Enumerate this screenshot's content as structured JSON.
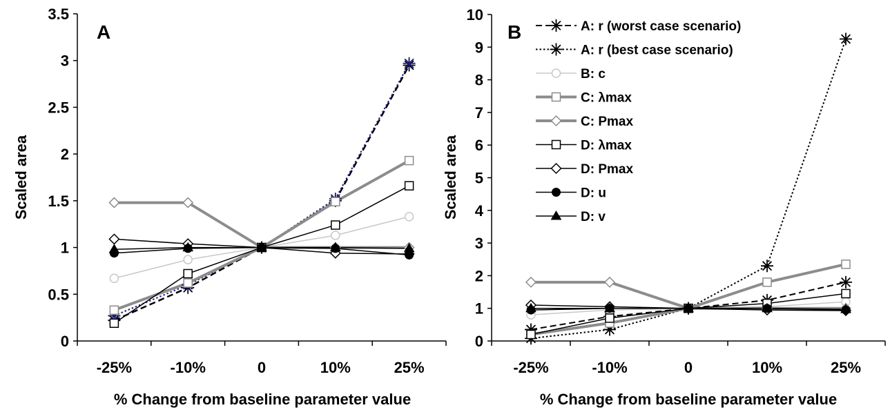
{
  "chart_data": [
    {
      "type": "line",
      "panel_label": "A",
      "categories": [
        "-25%",
        "-10%",
        "0",
        "10%",
        "25%"
      ],
      "xlabel": "% Change from baseline parameter value",
      "ylabel": "Scaled area",
      "ylim": [
        0,
        3.5
      ],
      "yticks": [
        "0",
        "0.5",
        "1",
        "1.5",
        "2",
        "2.5",
        "3",
        "3.5"
      ],
      "legend": "none",
      "grid": false,
      "series": [
        {
          "key": "r_worst",
          "values": [
            0.22,
            0.57,
            1.0,
            1.5,
            2.95
          ],
          "color": "#000000",
          "marker": "asterisk",
          "dash": "dashed",
          "width": 2.5
        },
        {
          "key": "r_best",
          "values": [
            0.27,
            0.6,
            1.0,
            1.52,
            2.97
          ],
          "color": "#1a1a7a",
          "marker": "asterisk",
          "dash": "dotted",
          "width": 2
        },
        {
          "key": "c",
          "values": [
            0.67,
            0.87,
            1.0,
            1.13,
            1.33
          ],
          "color": "#c8c8c8",
          "marker": "circle-open",
          "dash": "solid",
          "width": 1.5
        },
        {
          "key": "C_lmax",
          "values": [
            0.33,
            0.62,
            1.0,
            1.49,
            1.93
          ],
          "color": "#8c8c8c",
          "marker": "square-open",
          "dash": "solid",
          "width": 4
        },
        {
          "key": "C_pmax",
          "values": [
            1.48,
            1.48,
            1.0,
            1.0,
            1.0
          ],
          "color": "#8c8c8c",
          "marker": "diamond-open",
          "dash": "solid",
          "width": 4
        },
        {
          "key": "D_lmax",
          "values": [
            0.19,
            0.72,
            1.0,
            1.24,
            1.66
          ],
          "color": "#000000",
          "marker": "square-open",
          "dash": "solid",
          "width": 1.5
        },
        {
          "key": "D_pmax",
          "values": [
            1.09,
            1.04,
            1.0,
            0.94,
            0.93
          ],
          "color": "#000000",
          "marker": "diamond-open",
          "dash": "solid",
          "width": 1.5
        },
        {
          "key": "D_u",
          "values": [
            0.94,
            0.99,
            1.0,
            0.99,
            0.92
          ],
          "color": "#000000",
          "marker": "circle-filled",
          "dash": "solid",
          "width": 1.5
        },
        {
          "key": "D_v",
          "values": [
            0.98,
            1.0,
            1.0,
            1.0,
            0.99
          ],
          "color": "#000000",
          "marker": "triangle-filled",
          "dash": "solid",
          "width": 1.5
        }
      ]
    },
    {
      "type": "line",
      "panel_label": "B",
      "categories": [
        "-25%",
        "-10%",
        "0",
        "10%",
        "25%"
      ],
      "xlabel": "% Change from baseline parameter value",
      "ylabel": "Scaled area",
      "ylim": [
        0,
        10
      ],
      "yticks": [
        "0",
        "1",
        "2",
        "3",
        "4",
        "5",
        "6",
        "7",
        "8",
        "9",
        "10"
      ],
      "legend": "top-left",
      "grid": false,
      "series": [
        {
          "key": "r_worst",
          "name": "A: r (worst case scenario)",
          "values": [
            0.35,
            0.75,
            1.0,
            1.25,
            1.8
          ],
          "color": "#000000",
          "marker": "asterisk",
          "dash": "dashed",
          "width": 2
        },
        {
          "key": "r_best",
          "name": "A: r (best case scenario)",
          "values": [
            0.08,
            0.35,
            1.0,
            2.3,
            9.25
          ],
          "color": "#000000",
          "marker": "asterisk",
          "dash": "dotted",
          "width": 2
        },
        {
          "key": "c",
          "name": "B: c",
          "values": [
            0.8,
            0.95,
            1.0,
            1.05,
            1.2
          ],
          "color": "#c8c8c8",
          "marker": "circle-open",
          "dash": "solid",
          "width": 1.5
        },
        {
          "key": "C_lmax",
          "name": "C: λmax",
          "values": [
            0.2,
            0.55,
            1.0,
            1.8,
            2.35
          ],
          "color": "#8c8c8c",
          "marker": "square-open",
          "dash": "solid",
          "width": 4
        },
        {
          "key": "C_pmax",
          "name": "C: Pmax",
          "values": [
            1.8,
            1.8,
            1.0,
            1.0,
            1.0
          ],
          "color": "#8c8c8c",
          "marker": "diamond-open",
          "dash": "solid",
          "width": 4
        },
        {
          "key": "D_lmax",
          "name": "D: λmax",
          "values": [
            0.2,
            0.7,
            1.0,
            1.15,
            1.45
          ],
          "color": "#000000",
          "marker": "square-open",
          "dash": "solid",
          "width": 1.5
        },
        {
          "key": "D_pmax",
          "name": "D: Pmax",
          "values": [
            1.1,
            1.05,
            1.0,
            0.95,
            0.93
          ],
          "color": "#000000",
          "marker": "diamond-open",
          "dash": "solid",
          "width": 1.5
        },
        {
          "key": "D_u",
          "name": "D: u",
          "values": [
            0.95,
            1.0,
            1.0,
            1.0,
            0.95
          ],
          "color": "#000000",
          "marker": "circle-filled",
          "dash": "solid",
          "width": 1.5
        },
        {
          "key": "D_v",
          "name": "D: v",
          "values": [
            1.0,
            1.0,
            1.0,
            1.0,
            0.97
          ],
          "color": "#000000",
          "marker": "triangle-filled",
          "dash": "solid",
          "width": 1.5
        }
      ]
    }
  ]
}
